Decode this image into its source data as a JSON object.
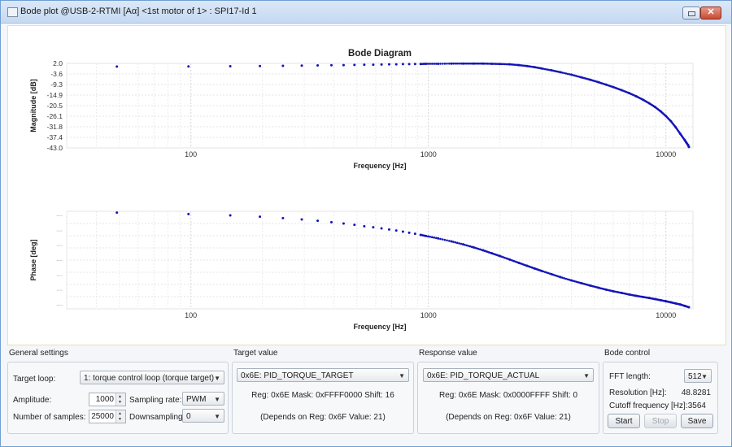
{
  "window": {
    "title": "Bode plot @USB-2-RTMI [Aα] <1st motor of 1> : SPI17-Id 1",
    "close_label": "✕"
  },
  "chart_data": [
    {
      "type": "scatter",
      "title": "Bode Diagram",
      "xlabel": "Frequency [Hz]",
      "ylabel": "Magnitude [dB]",
      "x_scale": "log",
      "xlim": [
        30,
        13000
      ],
      "ylim": [
        -43.0,
        2.0
      ],
      "x_tick_labels": [
        "100",
        "1000",
        "10000"
      ],
      "y_tick_labels": [
        "2.0",
        "-3.6",
        "-9.3",
        "-14.9",
        "-20.5",
        "-26.1",
        "-31.8",
        "-37.4",
        "-43.0"
      ],
      "grid": true,
      "series": [
        {
          "color": "#1515b8",
          "x": [
            48.8,
            97.7,
            146.5,
            195.3,
            244.1,
            293.0,
            341.8,
            390.6,
            439.5,
            488.3,
            537.1,
            585.9,
            634.8,
            683.6,
            732.4,
            781.3,
            830.1,
            878.9,
            927.7,
            976.6,
            1100,
            1250,
            1400,
            1550,
            1700,
            1850,
            2000,
            2200,
            2400,
            2600,
            2800,
            3000,
            3300,
            3600,
            4000,
            4400,
            4800,
            5200,
            5600,
            6000,
            6500,
            7000,
            7500,
            8000,
            8500,
            9000,
            9500,
            10000,
            10500,
            11000,
            11500,
            12000,
            12200,
            12400,
            12500
          ],
          "values": [
            0.3,
            0.4,
            0.5,
            0.6,
            0.7,
            0.8,
            0.9,
            1.0,
            1.1,
            1.2,
            1.3,
            1.3,
            1.4,
            1.5,
            1.5,
            1.6,
            1.6,
            1.7,
            1.7,
            1.8,
            1.8,
            1.9,
            1.9,
            1.9,
            1.9,
            1.8,
            1.7,
            1.5,
            1.1,
            0.6,
            0.0,
            -0.7,
            -1.7,
            -2.7,
            -4.0,
            -5.4,
            -6.7,
            -8.0,
            -9.3,
            -10.6,
            -12.2,
            -13.8,
            -15.5,
            -17.3,
            -19.2,
            -21.2,
            -23.5,
            -26.0,
            -28.8,
            -32.0,
            -35.5,
            -38.8,
            -40.2,
            -41.5,
            -42.5
          ]
        }
      ]
    },
    {
      "type": "scatter",
      "title": "",
      "xlabel": "Frequency [Hz]",
      "ylabel": "Phase [deg]",
      "x_scale": "log",
      "xlim": [
        30,
        13000
      ],
      "ylim": [
        -360,
        0
      ],
      "x_tick_labels": [
        "100",
        "1000",
        "10000"
      ],
      "grid": true,
      "series": [
        {
          "color": "#1515b8",
          "x": [
            48.8,
            97.7,
            146.5,
            195.3,
            244.1,
            293.0,
            341.8,
            390.6,
            439.5,
            488.3,
            537.1,
            585.9,
            634.8,
            683.6,
            732.4,
            781.3,
            830.1,
            878.9,
            927.7,
            976.6,
            1100,
            1250,
            1400,
            1550,
            1700,
            1850,
            2000,
            2200,
            2400,
            2600,
            2800,
            3000,
            3300,
            3600,
            4000,
            4400,
            4800,
            5200,
            5600,
            6000,
            6500,
            7000,
            7500,
            8000,
            8500,
            9000,
            9500,
            10000,
            10500,
            11000,
            11500,
            12000,
            12500
          ],
          "values": [
            -5,
            -10,
            -15,
            -20,
            -25,
            -30,
            -35,
            -40,
            -45,
            -50,
            -55,
            -59,
            -63,
            -67,
            -71,
            -75,
            -79,
            -83,
            -87,
            -91,
            -100,
            -111,
            -122,
            -133,
            -144,
            -155,
            -165,
            -178,
            -190,
            -201,
            -211,
            -220,
            -232,
            -243,
            -255,
            -265,
            -274,
            -282,
            -289,
            -295,
            -301,
            -307,
            -312,
            -316,
            -320,
            -324,
            -328,
            -332,
            -336,
            -340,
            -344,
            -349,
            -354
          ]
        }
      ]
    }
  ],
  "general_settings": {
    "title": "General settings",
    "target_loop_label": "Target loop:",
    "target_loop_value": "1: torque control loop (torque target)",
    "amplitude_label": "Amplitude:",
    "amplitude_value": "1000",
    "samples_label": "Number of samples:",
    "samples_value": "25000",
    "sampling_rate_label": "Sampling rate:",
    "sampling_rate_value": "PWM",
    "downsampling_label": "Downsampling:",
    "downsampling_value": "0"
  },
  "target_value": {
    "title": "Target value",
    "register": "0x6E: PID_TORQUE_TARGET",
    "details": "Reg: 0x6E   Mask: 0xFFFF0000   Shift: 16",
    "depends": "(Depends on Reg: 0x6F   Value: 21)"
  },
  "response_value": {
    "title": "Response value",
    "register": "0x6E: PID_TORQUE_ACTUAL",
    "details": "Reg: 0x6E   Mask: 0x0000FFFF   Shift: 0",
    "depends": "(Depends on Reg: 0x6F   Value: 21)"
  },
  "bode_control": {
    "title": "Bode control",
    "fft_label": "FFT length:",
    "fft_value": "512",
    "resolution_label": "Resolution [Hz]:",
    "resolution_value": "48.8281",
    "cutoff_label": "Cutoff frequency [Hz]:",
    "cutoff_value": "3564",
    "start_label": "Start",
    "stop_label": "Stop",
    "save_label": "Save"
  },
  "icons": {
    "dropdown": "▼",
    "spin_up": "▲",
    "spin_down": "▼"
  }
}
